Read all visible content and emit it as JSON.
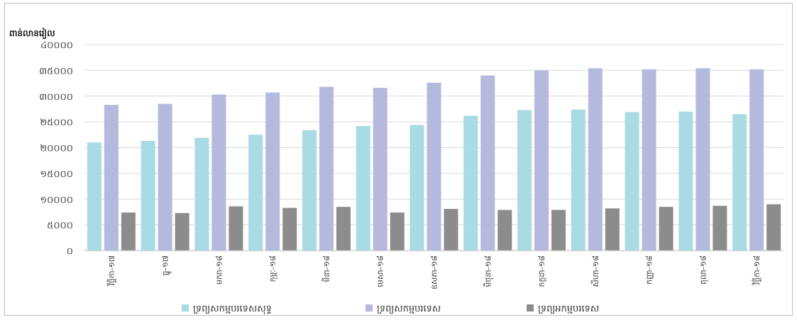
{
  "chart_data": {
    "type": "bar",
    "ylabel": "ពាន់លានរៀល",
    "ylim": [
      0,
      40000
    ],
    "yticks": [
      "០",
      "៥០០០",
      "១០០០០",
      "១៥០០០",
      "២០០០០",
      "២៥០០០",
      "៣០០០០",
      "៣៥០០០",
      "៤០០០០"
    ],
    "categories": [
      "វិច្ឆិកា-១៧",
      "ធ្នូ-១៧",
      "មករា-១៨",
      "កុម្ភៈ-១៨",
      "មីនា-១៨",
      "មេសា-១៨",
      "ឧសភា-១៨",
      "មិថុនា-១៨",
      "កក្កដា-១៨",
      "សីហា-១៨",
      "កញ្ញា-១៨",
      "តុលា-១៨",
      "វិច្ឆិកា-១៨"
    ],
    "series": [
      {
        "name": "ទ្រព្យសកម្មបរទេសសុទ្ធ",
        "color": "#a8dbe3",
        "values": [
          21000,
          21300,
          21900,
          22500,
          23400,
          24200,
          24400,
          26200,
          27300,
          27400,
          26900,
          27000,
          26500
        ]
      },
      {
        "name": "ទ្រព្យសកម្មបរទេស",
        "color": "#b4b9dd",
        "values": [
          28300,
          28500,
          30300,
          30700,
          31800,
          31600,
          32600,
          34000,
          35000,
          35400,
          35200,
          35400,
          35200
        ]
      },
      {
        "name": "ទ្រព្យអកម្មបរទេស",
        "color": "#8c8c8c",
        "values": [
          7400,
          7300,
          8600,
          8300,
          8500,
          7400,
          8100,
          7900,
          7900,
          8200,
          8500,
          8700,
          9000
        ]
      }
    ],
    "legend_position": "bottom",
    "grid": true
  }
}
